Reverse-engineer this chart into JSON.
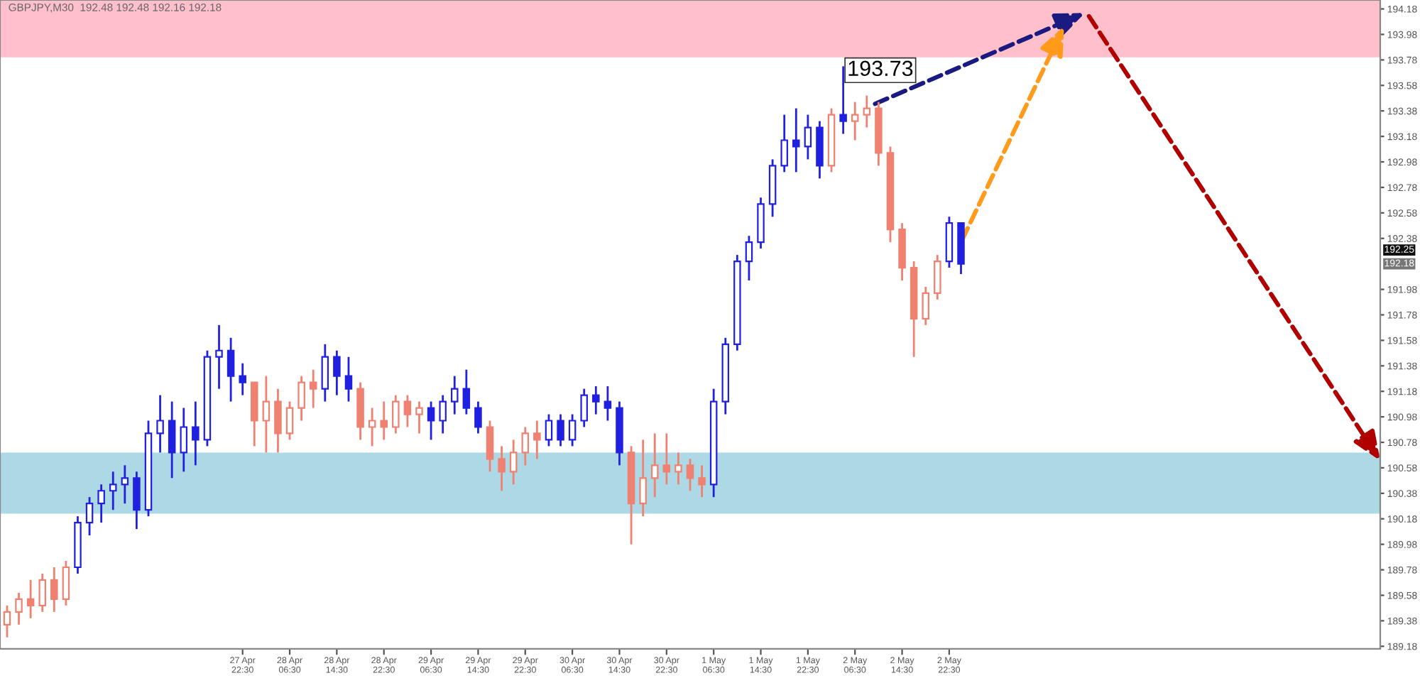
{
  "chart_data": {
    "type": "candlestick",
    "title": "GBPJPY,M30  192.48 192.48 192.16 192.18",
    "categories": [
      null,
      null,
      null,
      null,
      null,
      null,
      null,
      null,
      null,
      null,
      null,
      null,
      null,
      null,
      null,
      null,
      null,
      null,
      null,
      null,
      "27 Apr 22:30",
      null,
      null,
      null,
      "28 Apr 06:30",
      null,
      null,
      null,
      "28 Apr 14:30",
      null,
      null,
      null,
      "28 Apr 22:30",
      null,
      null,
      null,
      "29 Apr 06:30",
      null,
      null,
      null,
      "29 Apr 14:30",
      null,
      null,
      null,
      "29 Apr 22:30",
      null,
      null,
      null,
      "30 Apr 06:30",
      null,
      null,
      null,
      "30 Apr 14:30",
      null,
      null,
      null,
      "30 Apr 22:30",
      null,
      null,
      null,
      "1 May 06:30",
      null,
      null,
      null,
      "1 May 14:30",
      null,
      null,
      null,
      "1 May 22:30",
      null,
      null,
      null,
      "2 May 06:30",
      null,
      null,
      null,
      "2 May 14:30",
      null,
      null,
      null,
      "2 May 22:30",
      null,
      null,
      null,
      null,
      null,
      null,
      null,
      null,
      null,
      null,
      null,
      null,
      null,
      null,
      null,
      null,
      null,
      null,
      null,
      null,
      null,
      null,
      null,
      null,
      null,
      null,
      null,
      null,
      null,
      null,
      null,
      null,
      null,
      null,
      null,
      null
    ],
    "ohlc": [
      [
        189.35,
        189.5,
        189.25,
        189.45
      ],
      [
        189.45,
        189.6,
        189.35,
        189.55
      ],
      [
        189.55,
        189.7,
        189.4,
        189.5
      ],
      [
        189.5,
        189.75,
        189.45,
        189.7
      ],
      [
        189.7,
        189.8,
        189.45,
        189.55
      ],
      [
        189.55,
        189.85,
        189.5,
        189.8
      ],
      [
        189.8,
        190.2,
        189.75,
        190.15
      ],
      [
        190.15,
        190.35,
        190.05,
        190.3
      ],
      [
        190.3,
        190.45,
        190.15,
        190.4
      ],
      [
        190.4,
        190.55,
        190.25,
        190.45
      ],
      [
        190.45,
        190.6,
        190.3,
        190.5
      ],
      [
        190.5,
        190.55,
        190.1,
        190.25
      ],
      [
        190.25,
        190.95,
        190.2,
        190.85
      ],
      [
        190.85,
        191.15,
        190.7,
        190.95
      ],
      [
        190.95,
        191.1,
        190.5,
        190.7
      ],
      [
        190.7,
        191.05,
        190.55,
        190.9
      ],
      [
        190.9,
        191.1,
        190.6,
        190.8
      ],
      [
        190.8,
        191.5,
        190.75,
        191.45
      ],
      [
        191.45,
        191.7,
        191.2,
        191.5
      ],
      [
        191.5,
        191.6,
        191.1,
        191.3
      ],
      [
        191.3,
        191.4,
        191.15,
        191.25
      ],
      [
        191.25,
        191.25,
        190.75,
        190.95
      ],
      [
        190.95,
        191.3,
        190.7,
        191.1
      ],
      [
        191.1,
        191.2,
        190.7,
        190.85
      ],
      [
        190.85,
        191.1,
        190.8,
        191.05
      ],
      [
        191.05,
        191.3,
        190.95,
        191.25
      ],
      [
        191.25,
        191.35,
        191.05,
        191.2
      ],
      [
        191.2,
        191.55,
        191.1,
        191.45
      ],
      [
        191.45,
        191.5,
        191.15,
        191.3
      ],
      [
        191.3,
        191.45,
        191.1,
        191.2
      ],
      [
        191.2,
        191.25,
        190.8,
        190.9
      ],
      [
        190.9,
        191.05,
        190.75,
        190.95
      ],
      [
        190.95,
        191.1,
        190.8,
        190.9
      ],
      [
        190.9,
        191.15,
        190.85,
        191.1
      ],
      [
        191.1,
        191.15,
        190.9,
        191.0
      ],
      [
        191.0,
        191.1,
        190.85,
        191.05
      ],
      [
        191.05,
        191.1,
        190.8,
        190.95
      ],
      [
        190.95,
        191.15,
        190.85,
        191.1
      ],
      [
        191.1,
        191.3,
        191.0,
        191.2
      ],
      [
        191.2,
        191.35,
        191.0,
        191.05
      ],
      [
        191.05,
        191.1,
        190.85,
        190.9
      ],
      [
        190.9,
        190.95,
        190.55,
        190.65
      ],
      [
        190.65,
        190.75,
        190.4,
        190.55
      ],
      [
        190.55,
        190.8,
        190.45,
        190.7
      ],
      [
        190.7,
        190.9,
        190.6,
        190.85
      ],
      [
        190.85,
        190.95,
        190.65,
        190.8
      ],
      [
        190.8,
        191.0,
        190.75,
        190.95
      ],
      [
        190.95,
        191.0,
        190.75,
        190.8
      ],
      [
        190.8,
        191.0,
        190.75,
        190.95
      ],
      [
        190.95,
        191.2,
        190.9,
        191.15
      ],
      [
        191.15,
        191.22,
        191.0,
        191.1
      ],
      [
        191.1,
        191.22,
        190.95,
        191.05
      ],
      [
        191.05,
        191.1,
        190.6,
        190.7
      ],
      [
        190.7,
        190.75,
        189.98,
        190.3
      ],
      [
        190.3,
        190.8,
        190.2,
        190.5
      ],
      [
        190.5,
        190.85,
        190.35,
        190.6
      ],
      [
        190.6,
        190.85,
        190.45,
        190.55
      ],
      [
        190.55,
        190.7,
        190.45,
        190.6
      ],
      [
        190.6,
        190.65,
        190.4,
        190.5
      ],
      [
        190.5,
        190.6,
        190.35,
        190.45
      ],
      [
        190.45,
        191.2,
        190.35,
        191.1
      ],
      [
        191.1,
        191.6,
        191.0,
        191.55
      ],
      [
        191.55,
        192.25,
        191.5,
        192.2
      ],
      [
        192.2,
        192.4,
        192.05,
        192.35
      ],
      [
        192.35,
        192.7,
        192.3,
        192.65
      ],
      [
        192.65,
        193.0,
        192.55,
        192.95
      ],
      [
        192.95,
        193.35,
        192.9,
        193.15
      ],
      [
        193.15,
        193.4,
        192.9,
        193.1
      ],
      [
        193.1,
        193.35,
        193.0,
        193.25
      ],
      [
        193.25,
        193.3,
        192.85,
        192.95
      ],
      [
        192.95,
        193.4,
        192.9,
        193.35
      ],
      [
        193.35,
        193.73,
        193.2,
        193.3
      ],
      [
        193.3,
        193.45,
        193.15,
        193.35
      ],
      [
        193.35,
        193.5,
        193.25,
        193.4
      ],
      [
        193.4,
        193.45,
        192.95,
        193.05
      ],
      [
        193.05,
        193.1,
        192.35,
        192.45
      ],
      [
        192.45,
        192.5,
        192.05,
        192.15
      ],
      [
        192.15,
        192.2,
        191.45,
        191.75
      ],
      [
        191.75,
        192.0,
        191.7,
        191.95
      ],
      [
        191.95,
        192.25,
        191.9,
        192.2
      ],
      [
        192.2,
        192.55,
        192.15,
        192.5
      ],
      [
        192.5,
        192.5,
        192.1,
        192.18
      ],
      null,
      null,
      null,
      null,
      null,
      null,
      null,
      null,
      null,
      null,
      null,
      null,
      null,
      null,
      null,
      null,
      null,
      null,
      null,
      null,
      null,
      null,
      null,
      null,
      null,
      null,
      null,
      null,
      null,
      null,
      null,
      null,
      null,
      null,
      null
    ],
    "colors": [
      "#f08070",
      "#f08070",
      "#f08070",
      "#f08070",
      "#f08070",
      "#f08070",
      "#2020e0",
      "#2020e0",
      "#2020e0",
      "#2020e0",
      "#2020e0",
      "#2020e0",
      "#2020e0",
      "#2020e0",
      "#2020e0",
      "#2020e0",
      "#2020e0",
      "#2020e0",
      "#2020e0",
      "#2020e0",
      "#2020e0",
      "#f08070",
      "#f08070",
      "#f08070",
      "#f08070",
      "#f08070",
      "#f08070",
      "#2020e0",
      "#2020e0",
      "#2020e0",
      "#f08070",
      "#f08070",
      "#f08070",
      "#f08070",
      "#f08070",
      "#f08070",
      "#2020e0",
      "#2020e0",
      "#2020e0",
      "#2020e0",
      "#2020e0",
      "#f08070",
      "#f08070",
      "#f08070",
      "#f08070",
      "#f08070",
      "#2020e0",
      "#2020e0",
      "#2020e0",
      "#2020e0",
      "#2020e0",
      "#2020e0",
      "#2020e0",
      "#f08070",
      "#f08070",
      "#f08070",
      "#f08070",
      "#f08070",
      "#f08070",
      "#f08070",
      "#2020e0",
      "#2020e0",
      "#2020e0",
      "#2020e0",
      "#2020e0",
      "#2020e0",
      "#2020e0",
      "#2020e0",
      "#2020e0",
      "#2020e0",
      "#f08070",
      "#2020e0",
      "#f08070",
      "#f08070",
      "#f08070",
      "#f08070",
      "#f08070",
      "#f08070",
      "#f08070",
      "#f08070",
      "#2020e0",
      "#2020e0",
      null,
      null,
      null,
      null,
      null,
      null,
      null,
      null,
      null,
      null,
      null,
      null,
      null,
      null,
      null,
      null,
      null,
      null,
      null,
      null,
      null,
      null,
      null,
      null,
      null,
      null,
      null,
      null,
      null,
      null,
      null,
      null,
      null,
      null,
      null
    ],
    "line_style": "dashed",
    "bands": [
      {
        "axis": "y",
        "from": 193.8,
        "to": 194.25,
        "color": "#ffc0cb"
      },
      {
        "axis": "y",
        "from": 190.22,
        "to": 190.7,
        "color": "#add8e6"
      }
    ],
    "annotations": [
      "193.73",
      "192.25",
      "192.18"
    ],
    "ylim": [
      189.16,
      194.25
    ],
    "yticks": [
      194.18,
      193.98,
      193.78,
      193.58,
      193.38,
      193.18,
      192.98,
      192.78,
      192.58,
      192.38,
      191.98,
      191.78,
      191.58,
      191.38,
      191.18,
      190.98,
      190.78,
      190.58,
      190.38,
      190.18,
      189.98,
      189.78,
      189.58,
      189.38,
      189.18
    ],
    "grid": false
  }
}
